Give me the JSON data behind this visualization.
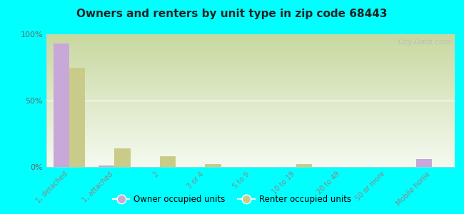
{
  "title": "Owners and renters by unit type in zip code 68443",
  "categories": [
    "1, detached",
    "1, attached",
    "2",
    "3 or 4",
    "5 to 9",
    "10 to 19",
    "20 to 49",
    "50 or more",
    "Mobile home"
  ],
  "owner_values": [
    93,
    1,
    0,
    0,
    0,
    0,
    0,
    0,
    6
  ],
  "renter_values": [
    75,
    14,
    8,
    2,
    0,
    2,
    0,
    0,
    0
  ],
  "owner_color": "#c8a8d8",
  "renter_color": "#c8cc88",
  "bg_color_top": "#c8d8a0",
  "bg_color_bottom": "#f5faf0",
  "outer_bg": "#00ffff",
  "ylim": [
    0,
    100
  ],
  "yticks": [
    0,
    50,
    100
  ],
  "ytick_labels": [
    "0%",
    "50%",
    "100%"
  ],
  "bar_width": 0.35,
  "legend_owner": "Owner occupied units",
  "legend_renter": "Renter occupied units",
  "watermark": "City-Data.com"
}
